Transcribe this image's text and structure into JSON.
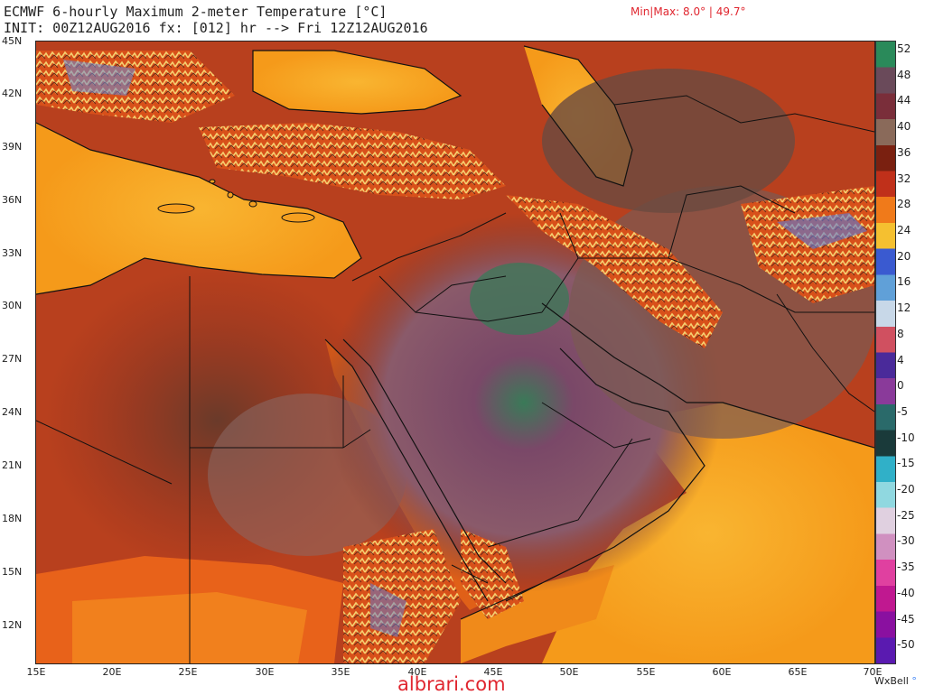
{
  "header": {
    "line1": "ECMWF 6-hourly Maximum 2-meter Temperature [°C]",
    "line2": "INIT: 00Z12AUG2016 fx: [012] hr --> Fri 12Z12AUG2016",
    "minmax": "Min|Max: 8.0° | 49.7°"
  },
  "map": {
    "lat_labels": [
      "45N",
      "42N",
      "39N",
      "36N",
      "33N",
      "30N",
      "27N",
      "24N",
      "21N",
      "18N",
      "15N",
      "12N"
    ],
    "lon_labels": [
      "15E",
      "20E",
      "25E",
      "30E",
      "35E",
      "40E",
      "45E",
      "50E",
      "55E",
      "60E",
      "65E",
      "70E"
    ],
    "colors": {
      "ocean_hot": "#f7a51e",
      "land_hot": "#e8541a",
      "desert_dark": "#7a3a26",
      "desert_purple": "#8a4e6a",
      "peak_green": "#3a7a58",
      "mountain_cool": "#f0d080"
    }
  },
  "colorbar": {
    "labels": [
      "52",
      "48",
      "44",
      "40",
      "36",
      "32",
      "28",
      "24",
      "20",
      "16",
      "12",
      "8",
      "4",
      "0",
      "-5",
      "-10",
      "-15",
      "-20",
      "-25",
      "-30",
      "-35",
      "-40",
      "-45",
      "-50"
    ],
    "stops": [
      "#2a8a5a",
      "#6a4a5a",
      "#7a2e3a",
      "#8a6a5a",
      "#7a2010",
      "#c0301a",
      "#f07a1a",
      "#f5c030",
      "#3a5ad0",
      "#60a0d8",
      "#c8d8e8",
      "#d05060",
      "#4a2a9a",
      "#8a3a9a",
      "#2a6a6a",
      "#1a3a3a",
      "#30b0c8",
      "#90d8e0",
      "#e0d0e0",
      "#d090c0",
      "#e040a0",
      "#c01890",
      "#8a10a0",
      "#5a1ab0"
    ]
  },
  "footer": {
    "brand": "WxBell",
    "watermark": "albrari.com"
  }
}
